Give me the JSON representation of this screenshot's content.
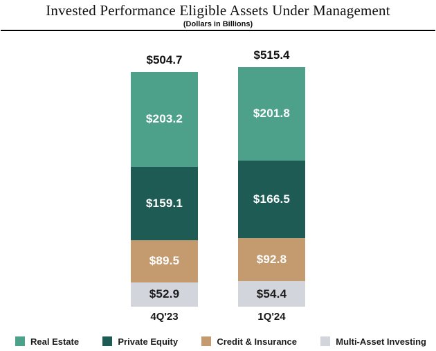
{
  "chart_data": {
    "type": "bar",
    "stacked": true,
    "title": "Invested Performance Eligible Assets Under Management",
    "subtitle": "(Dollars in Billions)",
    "categories": [
      "4Q'23",
      "1Q'24"
    ],
    "totals": [
      "$504.7",
      "$515.4"
    ],
    "total_values": [
      504.7,
      515.4
    ],
    "series": [
      {
        "name": "Real Estate",
        "color": "#4da18b",
        "text_color": "#ffffff",
        "values": [
          203.2,
          201.8
        ],
        "labels": [
          "$203.2",
          "$201.8"
        ]
      },
      {
        "name": "Private Equity",
        "color": "#1e5b55",
        "text_color": "#ffffff",
        "values": [
          159.1,
          166.5
        ],
        "labels": [
          "$159.1",
          "$166.5"
        ]
      },
      {
        "name": "Credit & Insurance",
        "color": "#c49b6e",
        "text_color": "#ffffff",
        "values": [
          89.5,
          92.8
        ],
        "labels": [
          "$89.5",
          "$92.8"
        ]
      },
      {
        "name": "Multi-Asset Investing",
        "color": "#d3d5dc",
        "text_color": "#1a1a1a",
        "values": [
          52.9,
          54.4
        ],
        "labels": [
          "$52.9",
          "$54.4"
        ]
      }
    ],
    "legend_position": "bottom",
    "grid": false,
    "axes_visible": false,
    "ylim": [
      0,
      515.4
    ]
  }
}
